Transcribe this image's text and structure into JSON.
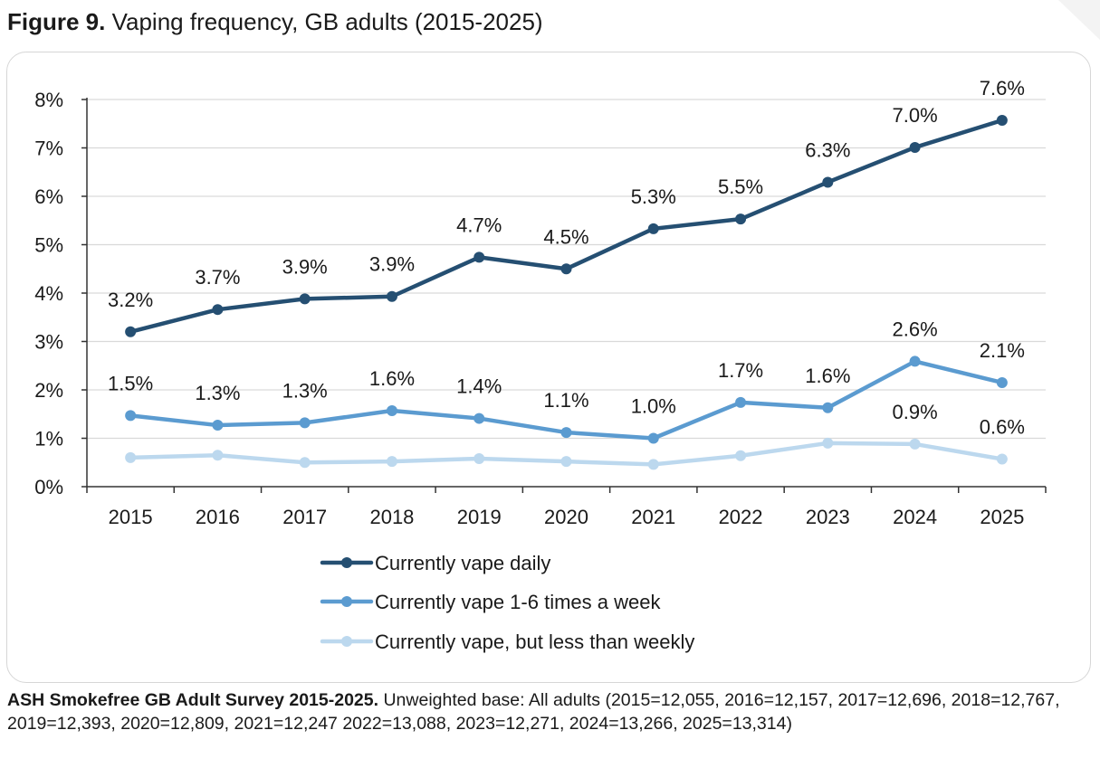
{
  "figure": {
    "label": "Figure 9.",
    "title": "Vaping frequency, GB adults (2015-2025)"
  },
  "source": {
    "label": "ASH Smokefree GB Adult Survey 2015-2025.",
    "text": "Unweighted base: All adults (2015=12,055, 2016=12,157, 2017=12,696, 2018=12,767, 2019=12,393, 2020=12,809, 2021=12,247 2022=13,088, 2023=12,271, 2024=13,266, 2025=13,314)"
  },
  "chart_data": {
    "type": "line",
    "title": "Vaping frequency, GB adults (2015-2025)",
    "xlabel": "",
    "ylabel": "",
    "x": [
      "2015",
      "2016",
      "2017",
      "2018",
      "2019",
      "2020",
      "2021",
      "2022",
      "2023",
      "2024",
      "2025"
    ],
    "ylim": [
      0,
      8
    ],
    "y_ticks": [
      "0%",
      "1%",
      "2%",
      "3%",
      "4%",
      "5%",
      "6%",
      "7%",
      "8%"
    ],
    "grid": true,
    "legend_position": "bottom-center",
    "series": [
      {
        "name": "Currently vape daily",
        "color": "#254f72",
        "values": [
          3.2,
          3.66,
          3.88,
          3.93,
          4.74,
          4.5,
          5.33,
          5.53,
          6.29,
          7.01,
          7.57
        ],
        "labels": [
          "3.2%",
          "3.7%",
          "3.9%",
          "3.9%",
          "4.7%",
          "4.5%",
          "5.3%",
          "5.5%",
          "6.3%",
          "7.0%",
          "7.6%"
        ]
      },
      {
        "name": "Currently vape 1-6 times a week",
        "color": "#5b9bd0",
        "values": [
          1.47,
          1.27,
          1.32,
          1.57,
          1.41,
          1.12,
          1.0,
          1.74,
          1.63,
          2.59,
          2.15
        ],
        "labels": [
          "1.5%",
          "1.3%",
          "1.3%",
          "1.6%",
          "1.4%",
          "1.1%",
          "1.0%",
          "1.7%",
          "1.6%",
          "2.6%",
          "2.1%"
        ]
      },
      {
        "name": "Currently vape, but less than weekly",
        "color": "#bcd8ee",
        "values": [
          0.6,
          0.65,
          0.5,
          0.52,
          0.58,
          0.52,
          0.46,
          0.64,
          0.9,
          0.88,
          0.57
        ],
        "labels": [
          "",
          "",
          "",
          "",
          "",
          "",
          "",
          "",
          "",
          "0.9%",
          "0.6%"
        ]
      }
    ]
  }
}
